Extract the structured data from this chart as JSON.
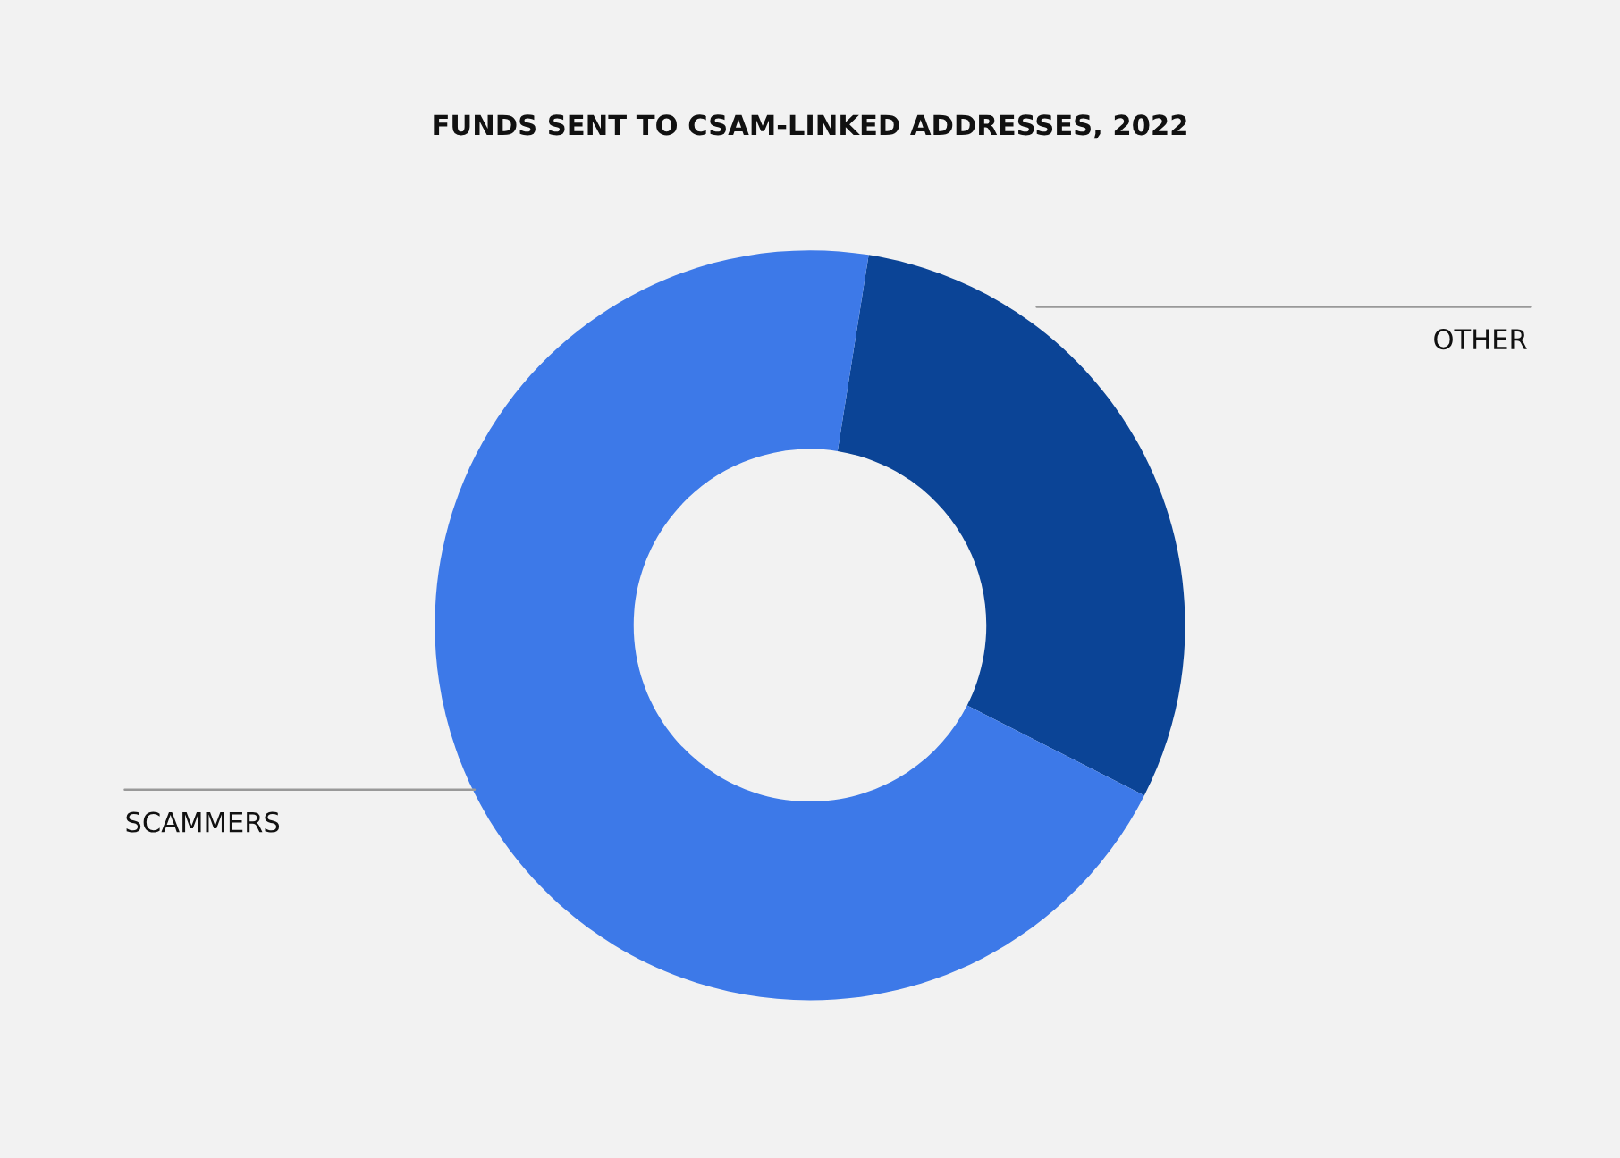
{
  "chart_data": {
    "type": "donut",
    "title": "FUNDS SENT TO CSAM-LINKED ADDRESSES, 2022",
    "categories": [
      "OTHER",
      "SCAMMERS"
    ],
    "values": [
      30,
      70
    ],
    "colors": [
      "#0b4496",
      "#3d79e8"
    ]
  }
}
